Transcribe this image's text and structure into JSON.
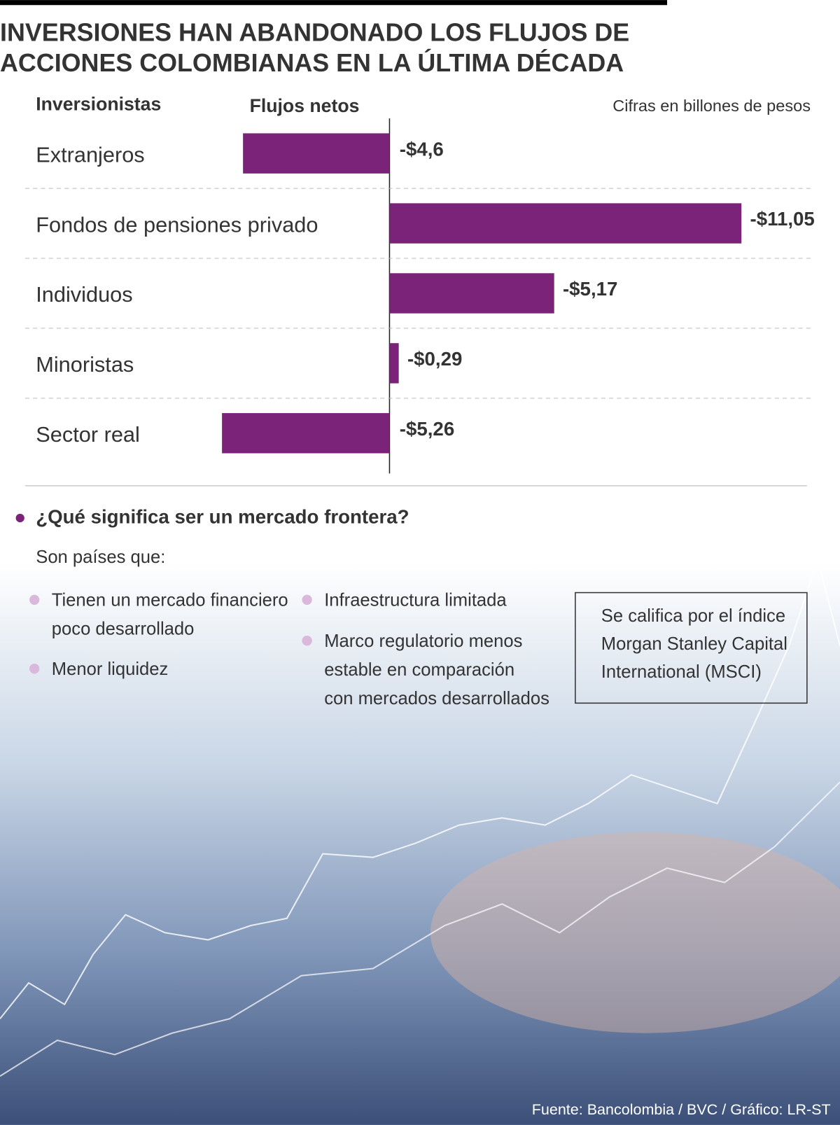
{
  "chart_data": {
    "type": "bar",
    "title_lines": [
      "INVERSIONES HAN ABANDONADO LOS FLUJOS DE",
      "ACCIONES COLOMBIANAS EN LA ÚLTIMA DÉCADA"
    ],
    "category_header": "Inversionistas",
    "value_header": "Flujos netos",
    "unit_note": "Cifras en billones de pesos",
    "categories": [
      "Extranjeros",
      "Fondos de pensiones privado",
      "Individuos",
      "Minoristas",
      "Sector real"
    ],
    "values": [
      -4.6,
      -11.05,
      -5.17,
      -0.29,
      -5.26
    ],
    "value_labels": [
      "-$4,6",
      "-$11,05",
      "-$5,17",
      "-$0,29",
      "-$5,26"
    ],
    "bar_direction": [
      "left",
      "right",
      "right",
      "right",
      "left"
    ],
    "color": "#7b2378"
  },
  "info": {
    "question": "¿Qué significa ser un mercado frontera?",
    "intro": "Son países que:",
    "items": [
      [
        "Tienen un mercado financiero",
        "poco desarrollado"
      ],
      [
        "Menor liquidez"
      ],
      [
        "Infraestructura limitada"
      ],
      [
        "Marco regulatorio menos",
        "estable en comparación",
        "con mercados desarrollados"
      ]
    ],
    "note": [
      "Se califica por el índice",
      "Morgan Stanley Capital",
      "International (MSCI)"
    ]
  },
  "source": "Fuente: Bancolombia / BVC / Gráfico: LR-ST"
}
